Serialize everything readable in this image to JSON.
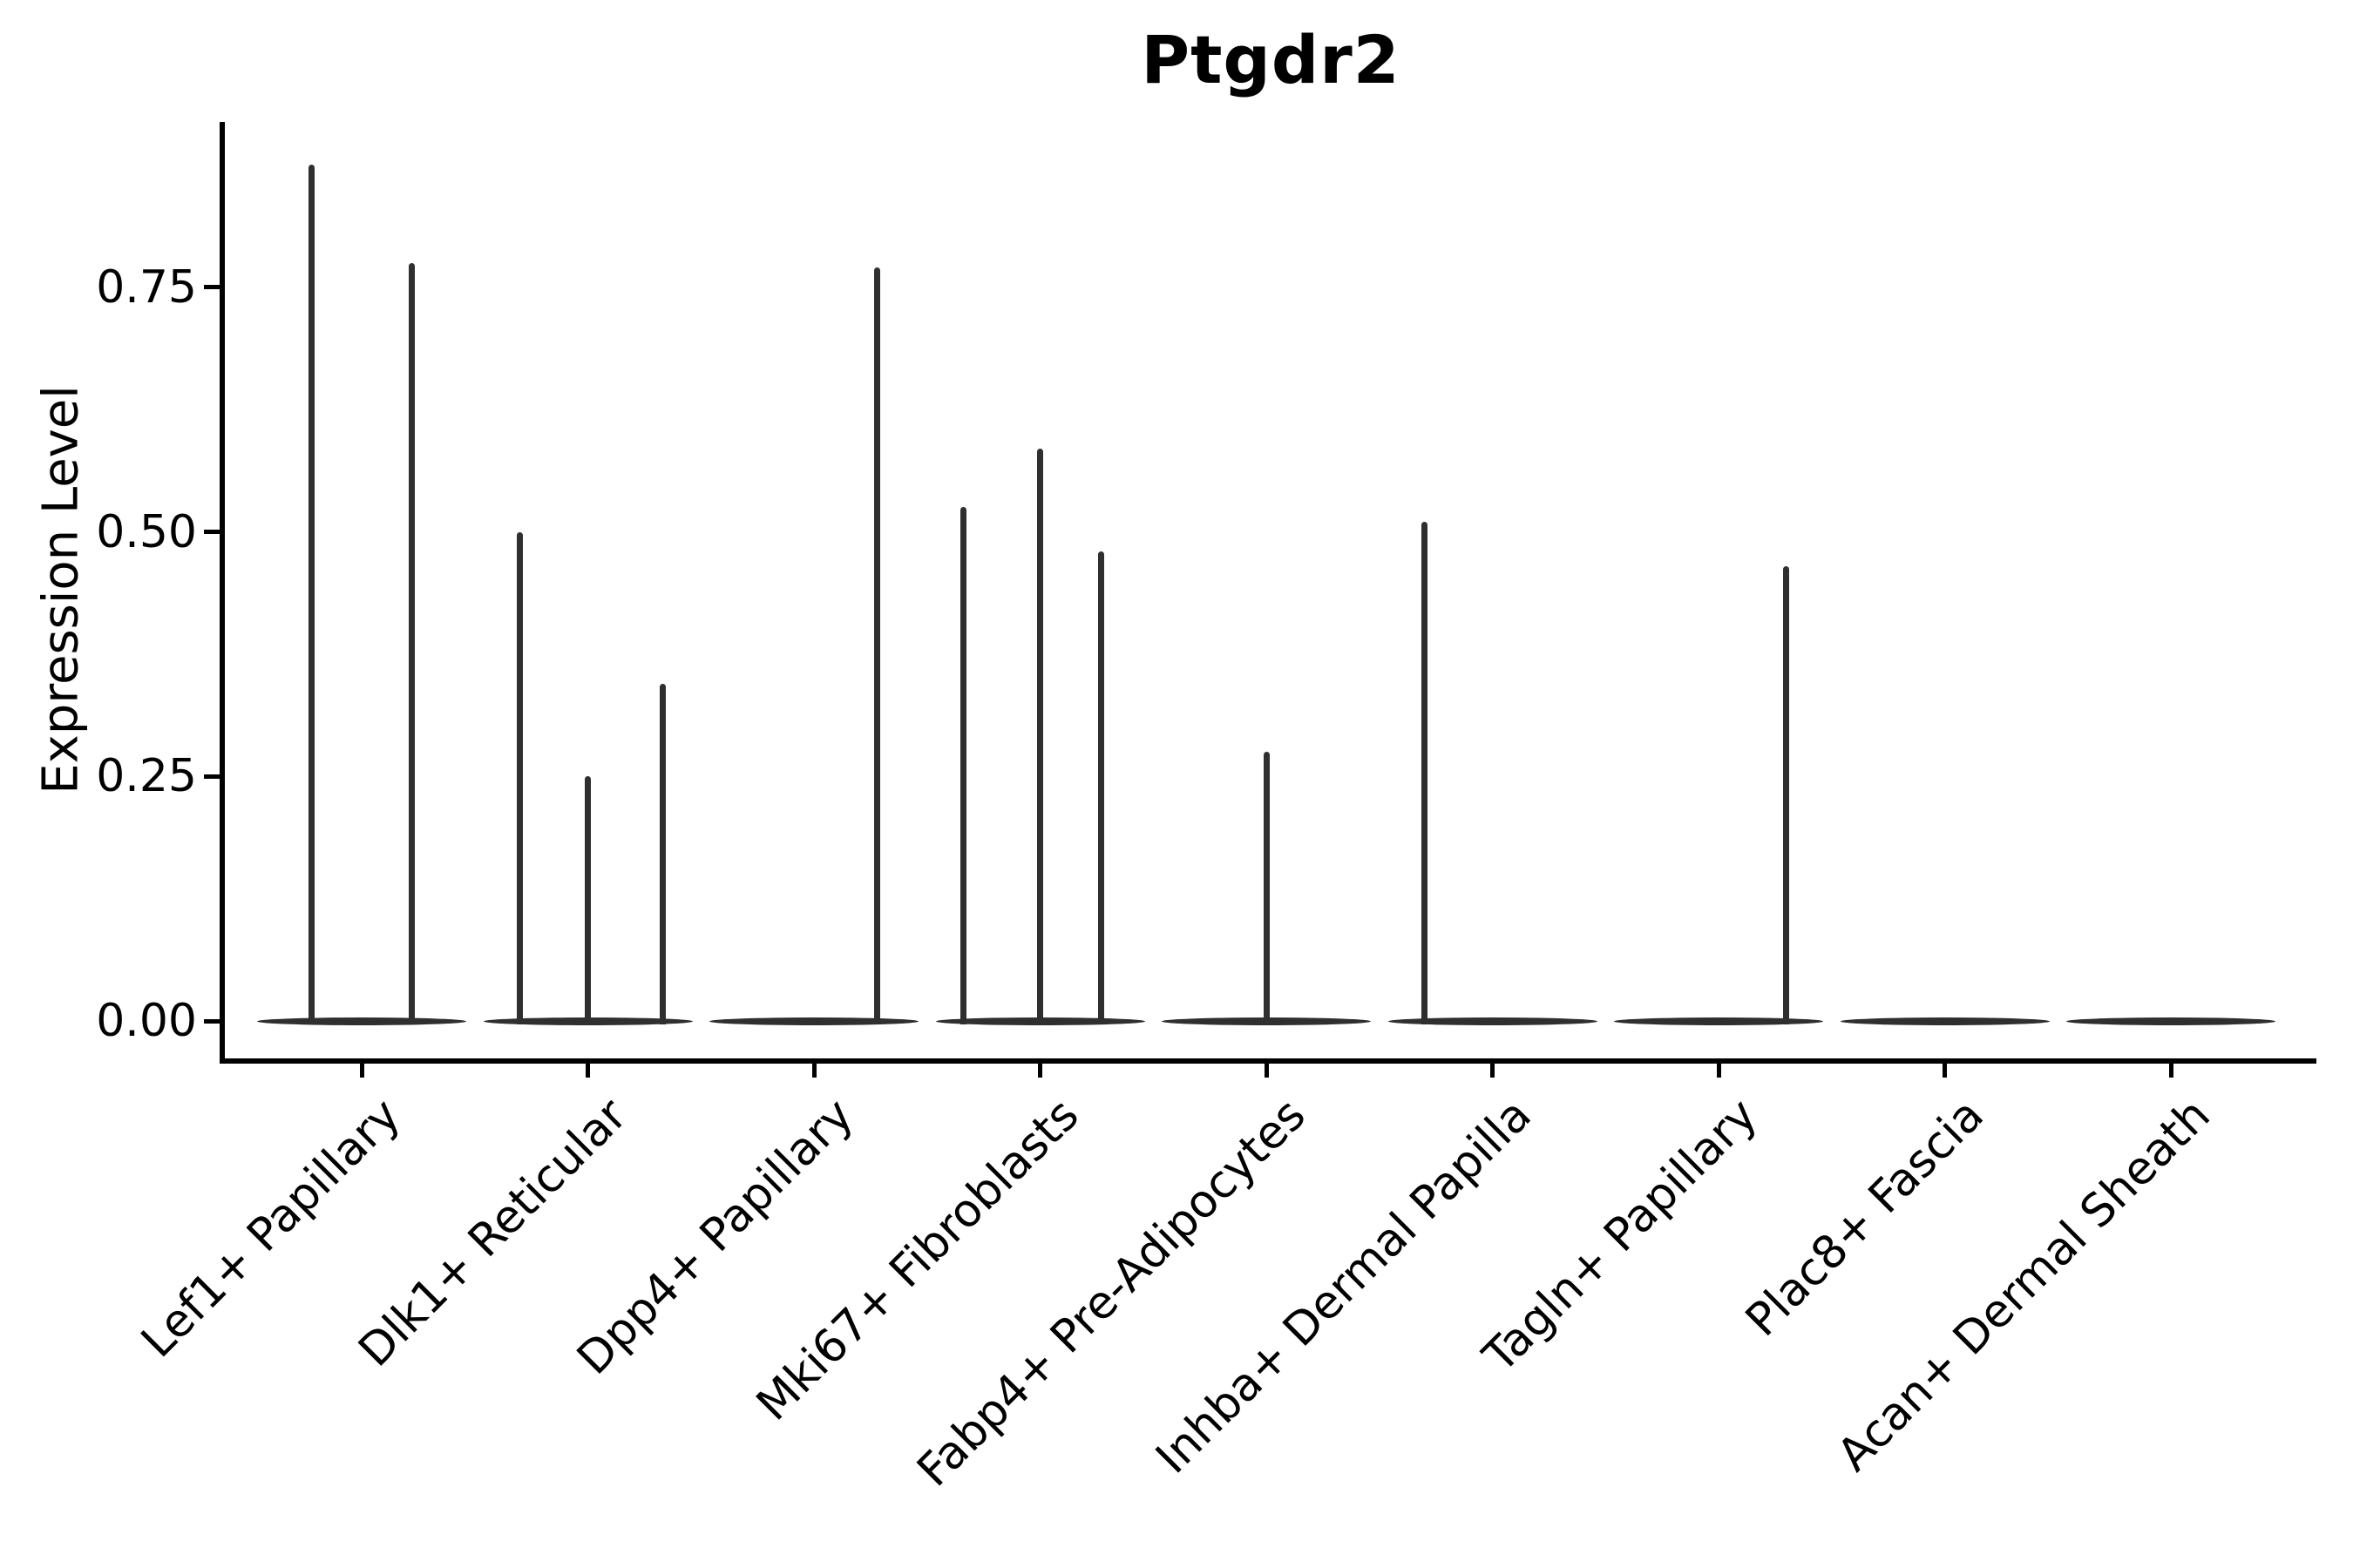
{
  "chart_data": {
    "type": "violin",
    "title": "Ptgdr2",
    "xlabel": "",
    "ylabel": "Expression Level",
    "grid": false,
    "legend": "none",
    "background": "#ffffff",
    "colors": {
      "violin": "#2f2f2f",
      "axis": "#000000",
      "text": "#000000"
    },
    "y_axis": {
      "range": [
        -0.04,
        0.92
      ],
      "ticks": [
        0,
        0.25,
        0.5,
        0.75
      ],
      "tick_labels": [
        "0.00",
        "0.25",
        "0.50",
        "0.75"
      ]
    },
    "categories": [
      "Lef1+ Papillary",
      "Dlk1+ Reticular",
      "Dpp4+ Papillary",
      "Mki67+ Fibroblasts",
      "Fabp4+ Pre-Adipocytes",
      "Inhba+ Dermal Papilla",
      "Tagln+ Papillary",
      "Plac8+ Fascia",
      "Acan+ Dermal Sheath"
    ],
    "description": "Violin plot of Ptgdr2 expression; nearly all cells are at 0 so each violin collapses to a flat lens at 0 with thin vertical spikes for rare expressing cells.",
    "series": [
      {
        "category": "Lef1+ Papillary",
        "zero_bulk": true,
        "spikes": [
          {
            "offset": -0.22,
            "value": 0.875
          },
          {
            "offset": 0.22,
            "value": 0.775
          }
        ]
      },
      {
        "category": "Dlk1+ Reticular",
        "zero_bulk": true,
        "spikes": [
          {
            "offset": -0.3,
            "value": 0.5
          },
          {
            "offset": 0.0,
            "value": 0.25
          },
          {
            "offset": 0.33,
            "value": 0.345
          }
        ]
      },
      {
        "category": "Dpp4+ Papillary",
        "zero_bulk": true,
        "spikes": [
          {
            "offset": 0.28,
            "value": 0.77
          }
        ]
      },
      {
        "category": "Mki67+ Fibroblasts",
        "zero_bulk": true,
        "spikes": [
          {
            "offset": -0.34,
            "value": 0.525
          },
          {
            "offset": 0.0,
            "value": 0.585
          },
          {
            "offset": 0.27,
            "value": 0.48
          }
        ]
      },
      {
        "category": "Fabp4+ Pre-Adipocytes",
        "zero_bulk": true,
        "spikes": [
          {
            "offset": 0.0,
            "value": 0.275
          }
        ]
      },
      {
        "category": "Inhba+ Dermal Papilla",
        "zero_bulk": true,
        "spikes": [
          {
            "offset": -0.3,
            "value": 0.51
          }
        ]
      },
      {
        "category": "Tagln+ Papillary",
        "zero_bulk": true,
        "spikes": [
          {
            "offset": 0.3,
            "value": 0.465
          }
        ]
      },
      {
        "category": "Plac8+ Fascia",
        "zero_bulk": true,
        "spikes": []
      },
      {
        "category": "Acan+ Dermal Sheath",
        "zero_bulk": true,
        "spikes": []
      }
    ]
  }
}
